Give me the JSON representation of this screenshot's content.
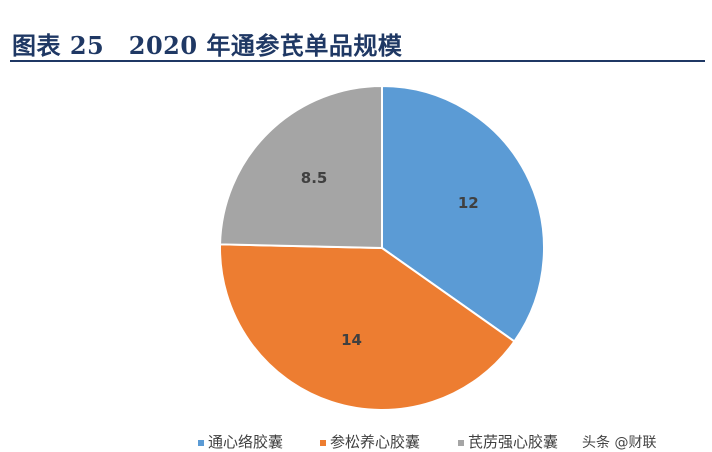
{
  "header": {
    "title": "图表 25　2020 年通参芪单品规模"
  },
  "chart_data": {
    "type": "pie",
    "title": "",
    "start_angle_deg": 0,
    "direction": "clockwise",
    "categories": [
      "通心络胶囊",
      "参松养心胶囊",
      "芪苈强心胶囊"
    ],
    "values": [
      12,
      14,
      8.5
    ],
    "colors": [
      "#5b9bd5",
      "#ed7d31",
      "#a5a5a5"
    ],
    "legend_position": "bottom"
  },
  "legend": {
    "items": [
      {
        "label": "通心络胶囊",
        "color": "#5b9bd5"
      },
      {
        "label": "参松养心胶囊",
        "color": "#ed7d31"
      },
      {
        "label": "芪苈强心胶囊",
        "color": "#a5a5a5"
      }
    ]
  },
  "watermark": {
    "text": "头条 @财联"
  }
}
